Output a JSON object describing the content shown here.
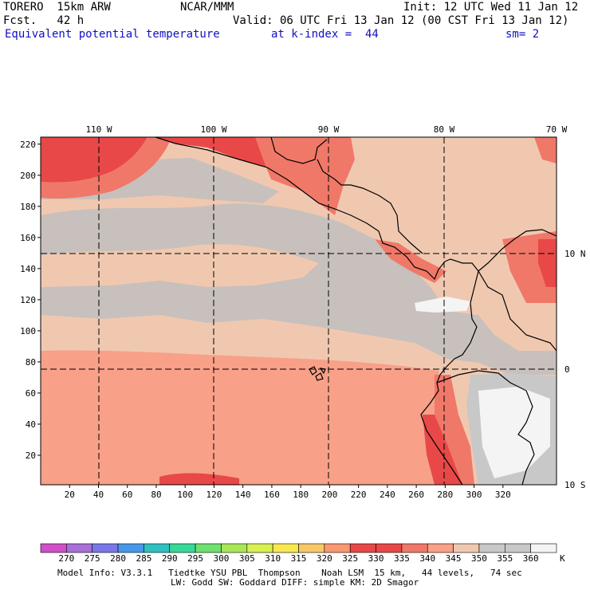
{
  "header": {
    "model": "TORERO  15km ARW",
    "org": "NCAR/MMM",
    "init": "Init: 12 UTC Wed 11 Jan 12",
    "fcst": "Fcst.   42 h",
    "valid": "Valid: 06 UTC Fri 13 Jan 12 (00 CST Fri 13 Jan 12)",
    "field": "Equivalent potential temperature",
    "level": "at k-index =  44",
    "smooth": "sm= 2"
  },
  "map": {
    "grid_x_ticks": [
      "20",
      "40",
      "60",
      "80",
      "100",
      "120",
      "140",
      "160",
      "180",
      "200",
      "220",
      "240",
      "260",
      "280",
      "300",
      "320"
    ],
    "grid_y_ticks": [
      "20",
      "40",
      "60",
      "80",
      "100",
      "120",
      "140",
      "160",
      "180",
      "200",
      "220"
    ],
    "lon_labels": [
      "110 W",
      "100 W",
      "90 W",
      "80 W",
      "70 W"
    ],
    "lat_labels": [
      "10 N",
      "0",
      "10 S"
    ],
    "colors": {
      "c335": "#e84848",
      "c340": "#f07868",
      "c345": "#f8a088",
      "c350": "#f0c8b0",
      "c355": "#c8c0bc",
      "c360": "#c8c8c8",
      "c365": "#f4f4f4",
      "coast": "#000000"
    }
  },
  "colorbar": {
    "labels": [
      "270",
      "275",
      "280",
      "285",
      "290",
      "295",
      "300",
      "305",
      "310",
      "315",
      "320",
      "325",
      "330",
      "335",
      "340",
      "345",
      "350",
      "355",
      "360"
    ],
    "unit": "K",
    "colors": [
      "#d050c8",
      "#a870d8",
      "#7878e8",
      "#4898e8",
      "#30c0c0",
      "#38d898",
      "#70e070",
      "#a8e858",
      "#d8f050",
      "#f8e850",
      "#f8c868",
      "#f89870",
      "#e84848",
      "#e84848",
      "#f07868",
      "#f8a088",
      "#f0c8b0",
      "#c8c8c8",
      "#c8c8c8",
      "#f4f4f4"
    ]
  },
  "footer": {
    "line1": "Model Info: V3.3.1   Tiedtke YSU PBL  Thompson    Noah LSM  15 km,   44 levels,   74 sec",
    "line2": "LW: Godd SW: Goddard DIFF: simple KM: 2D Smagor"
  }
}
